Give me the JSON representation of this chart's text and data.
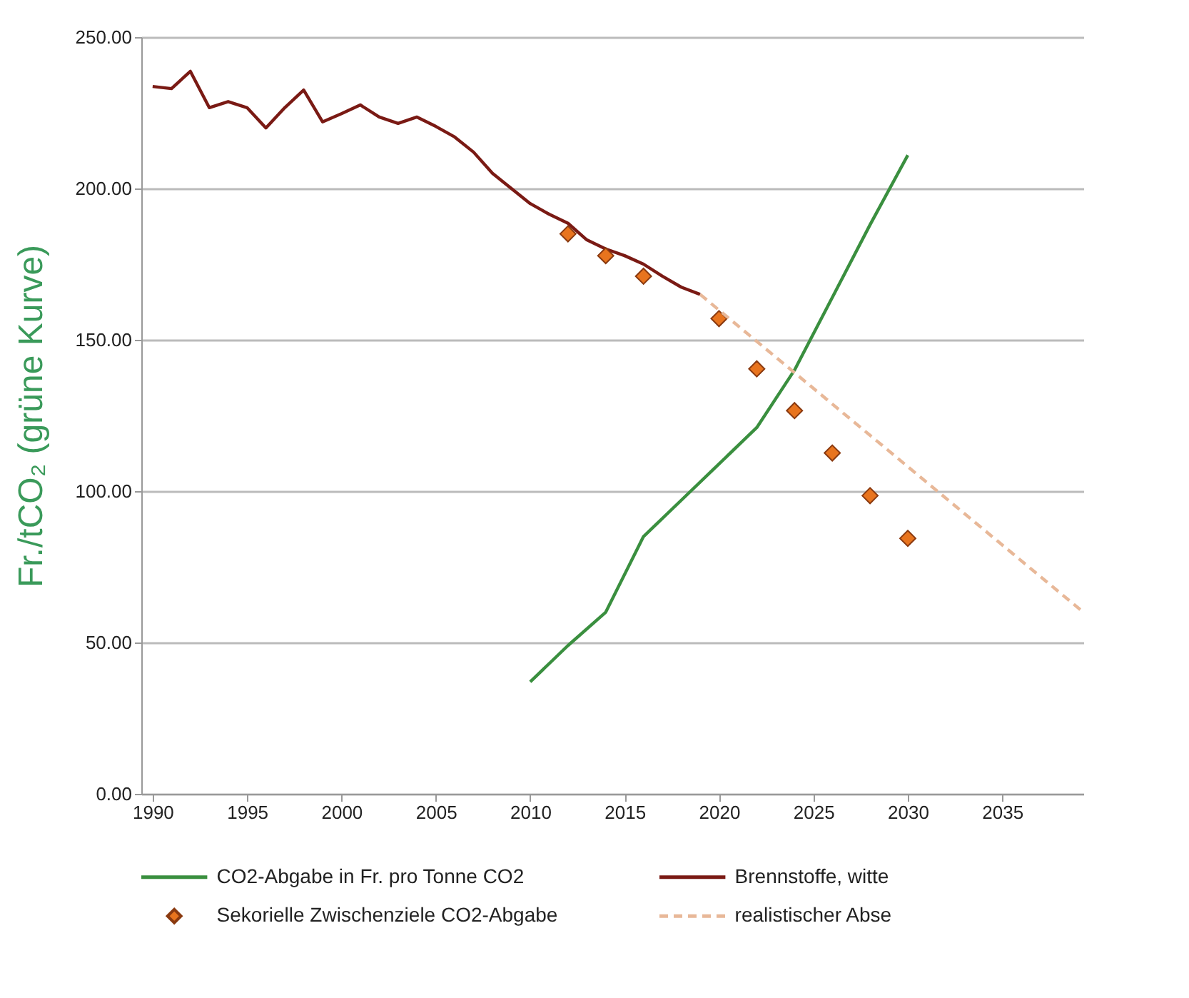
{
  "chart_data": {
    "type": "line",
    "ylabel": "Fr./tCO₂ (grüne Kurve)",
    "xlim": [
      1989.4,
      2039.3
    ],
    "xticks": [
      1990,
      1995,
      2000,
      2005,
      2010,
      2015,
      2020,
      2025,
      2030,
      2035
    ],
    "ylim": [
      0,
      250
    ],
    "yticks": [
      {
        "value": 0,
        "label": "0.00"
      },
      {
        "value": 50,
        "label": "50.00"
      },
      {
        "value": 100,
        "label": "100.00"
      },
      {
        "value": 150,
        "label": "150.00"
      },
      {
        "value": 200,
        "label": "200.00"
      },
      {
        "value": 250,
        "label": "250.00"
      }
    ],
    "grid": "y",
    "legend": "bottom",
    "series": [
      {
        "name": "CO2-Abgabe in Fr. pro Tonne CO2",
        "color": "#3a8f3f",
        "x": [
          2010,
          2012,
          2014,
          2016,
          2018,
          2020,
          2022,
          2024,
          2026,
          2028,
          2030
        ],
        "values": [
          37,
          49,
          60,
          85,
          97,
          109,
          121,
          140,
          164,
          188,
          211
        ]
      },
      {
        "name": "Brennstoffe, witte",
        "color": "#7a1a14",
        "x": [
          1990,
          1991,
          1992,
          1993,
          1994,
          1995,
          1996,
          1997,
          1998,
          1999,
          2000,
          2001,
          2002,
          2003,
          2004,
          2005,
          2006,
          2007,
          2008,
          2009,
          2010,
          2011,
          2012,
          2013,
          2014,
          2015,
          2016,
          2017,
          2018,
          2019
        ],
        "values": [
          233.7,
          233,
          238.7,
          226.7,
          228.7,
          226.7,
          220,
          226.7,
          232.5,
          222,
          224.7,
          227.6,
          223.6,
          221.5,
          223.6,
          220.5,
          217,
          212,
          205,
          200,
          195,
          191.5,
          188.5,
          183,
          180,
          177.8,
          175,
          171,
          167.4,
          165
        ]
      },
      {
        "name": "Sekorielle Zwischenziele CO2-Abgabe",
        "type": "scatter",
        "marker": "diamond",
        "color": "#e8741e",
        "x": [
          2012,
          2014,
          2016,
          2020,
          2022,
          2024,
          2026,
          2028,
          2030
        ],
        "values": [
          185,
          177.8,
          171,
          157,
          140.4,
          126.6,
          112.6,
          98.5,
          84.4
        ]
      },
      {
        "name": "realistischer Abse",
        "line_style": "dashed",
        "color": "#e8b898",
        "x": [
          2019,
          2039.3
        ],
        "values": [
          165,
          60
        ]
      }
    ]
  }
}
